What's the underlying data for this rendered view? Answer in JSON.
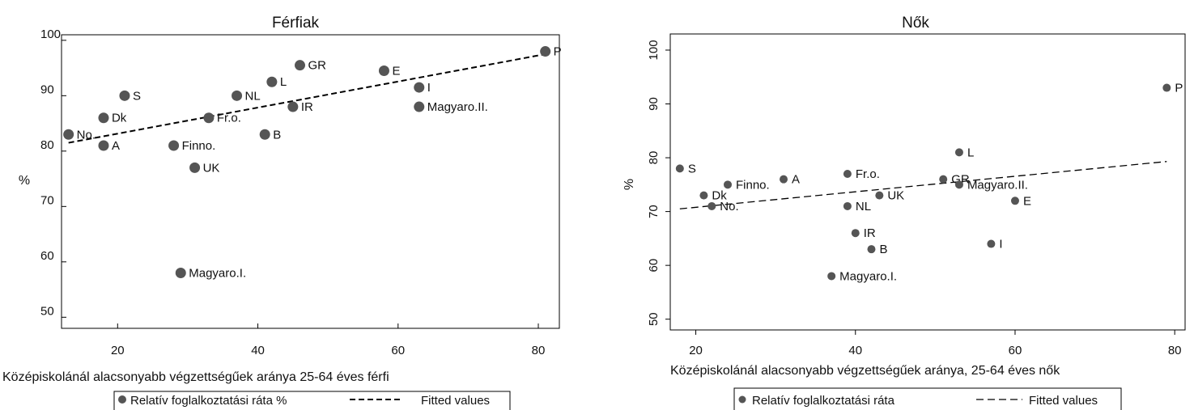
{
  "chart_data": [
    {
      "type": "scatter",
      "title": "Férfiak",
      "xlabel": "Középiskolánál alacsonyabb végzettségűek aránya 25-64 éves férfi",
      "ylabel": "%",
      "xlim": [
        12,
        83
      ],
      "ylim": [
        48,
        101
      ],
      "xticks": [
        20,
        40,
        60,
        80
      ],
      "yticks": [
        50,
        60,
        70,
        80,
        90,
        100
      ],
      "grid": false,
      "legend_position": "bottom",
      "series": [
        {
          "name": "Relatív foglalkoztatási ráta %",
          "points": [
            {
              "label": "No.",
              "x": 13,
              "y": 83
            },
            {
              "label": "A",
              "x": 18,
              "y": 81
            },
            {
              "label": "Dk",
              "x": 18,
              "y": 86
            },
            {
              "label": "S",
              "x": 21,
              "y": 90
            },
            {
              "label": "Finno.",
              "x": 28,
              "y": 81
            },
            {
              "label": "Magyaro.I.",
              "x": 29,
              "y": 58
            },
            {
              "label": "UK",
              "x": 31,
              "y": 77
            },
            {
              "label": "Fr.o.",
              "x": 33,
              "y": 86
            },
            {
              "label": "NL",
              "x": 37,
              "y": 90
            },
            {
              "label": "B",
              "x": 41,
              "y": 83
            },
            {
              "label": "L",
              "x": 42,
              "y": 92.5
            },
            {
              "label": "IR",
              "x": 45,
              "y": 88
            },
            {
              "label": "GR",
              "x": 46,
              "y": 95.5
            },
            {
              "label": "E",
              "x": 58,
              "y": 94.5
            },
            {
              "label": "I",
              "x": 63,
              "y": 91.5
            },
            {
              "label": "Magyaro.II.",
              "x": 63,
              "y": 88
            },
            {
              "label": "P",
              "x": 81,
              "y": 98
            }
          ]
        },
        {
          "name": "Fitted values",
          "line": [
            {
              "x": 13,
              "y": 81.5
            },
            {
              "x": 81,
              "y": 97.5
            }
          ]
        }
      ]
    },
    {
      "type": "scatter",
      "title": "Nők",
      "xlabel": "Középiskolánál alacsonyabb végzettségűek aránya, 25-64 éves nők",
      "ylabel": "%",
      "xlim": [
        16.8,
        81.3
      ],
      "ylim": [
        48,
        103
      ],
      "xticks": [
        20,
        40,
        60,
        80
      ],
      "yticks": [
        50,
        60,
        70,
        80,
        90,
        100
      ],
      "grid": false,
      "legend_position": "bottom",
      "series": [
        {
          "name": "Relatív foglalkoztatási ráta",
          "points": [
            {
              "label": "S",
              "x": 18,
              "y": 78
            },
            {
              "label": "Dk",
              "x": 21,
              "y": 73
            },
            {
              "label": "No.",
              "x": 22,
              "y": 71
            },
            {
              "label": "Finno.",
              "x": 24,
              "y": 75
            },
            {
              "label": "A",
              "x": 31,
              "y": 76
            },
            {
              "label": "Magyaro.I.",
              "x": 37,
              "y": 58
            },
            {
              "label": "Fr.o.",
              "x": 39,
              "y": 77
            },
            {
              "label": "NL",
              "x": 39,
              "y": 71
            },
            {
              "label": "IR",
              "x": 40,
              "y": 66
            },
            {
              "label": "B",
              "x": 42,
              "y": 63
            },
            {
              "label": "UK",
              "x": 43,
              "y": 73
            },
            {
              "label": "GR",
              "x": 51,
              "y": 76
            },
            {
              "label": "L",
              "x": 53,
              "y": 81
            },
            {
              "label": "Magyaro.II.",
              "x": 53,
              "y": 75
            },
            {
              "label": "I",
              "x": 57,
              "y": 64
            },
            {
              "label": "E",
              "x": 60,
              "y": 72
            },
            {
              "label": "P",
              "x": 79,
              "y": 93
            }
          ]
        },
        {
          "name": "Fitted values",
          "line": [
            {
              "x": 18,
              "y": 70.5
            },
            {
              "x": 79,
              "y": 79.3
            }
          ]
        }
      ]
    }
  ]
}
